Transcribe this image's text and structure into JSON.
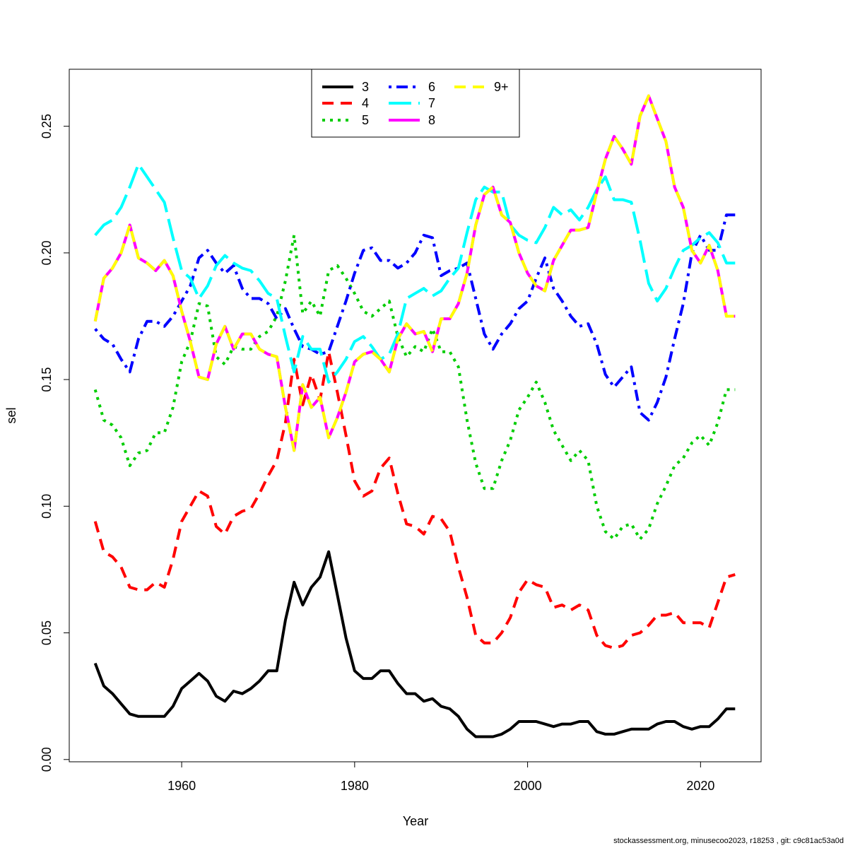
{
  "chart_data": {
    "type": "line",
    "title": "",
    "xlabel": "Year",
    "ylabel": "sel",
    "xlim": [
      1947,
      2027
    ],
    "ylim": [
      -0.0009,
      0.2725
    ],
    "xticks": [
      1960,
      1980,
      2000,
      2020
    ],
    "xtick_labels": [
      "1960",
      "1980",
      "2000",
      "2020"
    ],
    "yticks": [
      0.0,
      0.05,
      0.1,
      0.15,
      0.2,
      0.25
    ],
    "ytick_labels": [
      "0.00",
      "0.05",
      "0.10",
      "0.15",
      "0.20",
      "0.25"
    ],
    "legend_position": "top-center",
    "x": [
      1950,
      1951,
      1952,
      1953,
      1954,
      1955,
      1956,
      1957,
      1958,
      1959,
      1960,
      1961,
      1962,
      1963,
      1964,
      1965,
      1966,
      1967,
      1968,
      1969,
      1970,
      1971,
      1972,
      1973,
      1974,
      1975,
      1976,
      1977,
      1978,
      1979,
      1980,
      1981,
      1982,
      1983,
      1984,
      1985,
      1986,
      1987,
      1988,
      1989,
      1990,
      1991,
      1992,
      1993,
      1994,
      1995,
      1996,
      1997,
      1998,
      1999,
      2000,
      2001,
      2002,
      2003,
      2004,
      2005,
      2006,
      2007,
      2008,
      2009,
      2010,
      2011,
      2012,
      2013,
      2014,
      2015,
      2016,
      2017,
      2018,
      2019,
      2020,
      2021,
      2022,
      2023,
      2024
    ],
    "series": [
      {
        "name": "3",
        "color": "#000000",
        "dash": "solid",
        "values": [
          0.038,
          0.029,
          0.026,
          0.022,
          0.018,
          0.017,
          0.017,
          0.017,
          0.017,
          0.021,
          0.028,
          0.031,
          0.034,
          0.031,
          0.025,
          0.023,
          0.027,
          0.026,
          0.028,
          0.031,
          0.035,
          0.035,
          0.055,
          0.07,
          0.061,
          0.068,
          0.072,
          0.082,
          0.065,
          0.048,
          0.035,
          0.032,
          0.032,
          0.035,
          0.035,
          0.03,
          0.026,
          0.026,
          0.023,
          0.024,
          0.021,
          0.02,
          0.017,
          0.012,
          0.009,
          0.009,
          0.009,
          0.01,
          0.012,
          0.015,
          0.015,
          0.015,
          0.014,
          0.013,
          0.014,
          0.014,
          0.015,
          0.015,
          0.011,
          0.01,
          0.01,
          0.011,
          0.012,
          0.012,
          0.012,
          0.014,
          0.015,
          0.015,
          0.013,
          0.012,
          0.013,
          0.013,
          0.016,
          0.02,
          0.02
        ]
      },
      {
        "name": "4",
        "color": "#ff0000",
        "dash": "dashed",
        "values": [
          0.094,
          0.082,
          0.08,
          0.076,
          0.068,
          0.067,
          0.067,
          0.07,
          0.068,
          0.079,
          0.094,
          0.1,
          0.106,
          0.104,
          0.092,
          0.089,
          0.096,
          0.098,
          0.099,
          0.105,
          0.112,
          0.118,
          0.133,
          0.158,
          0.14,
          0.152,
          0.142,
          0.161,
          0.145,
          0.128,
          0.11,
          0.104,
          0.106,
          0.115,
          0.119,
          0.105,
          0.093,
          0.092,
          0.089,
          0.096,
          0.095,
          0.09,
          0.076,
          0.064,
          0.049,
          0.046,
          0.046,
          0.05,
          0.056,
          0.066,
          0.071,
          0.069,
          0.068,
          0.06,
          0.061,
          0.059,
          0.061,
          0.059,
          0.049,
          0.045,
          0.044,
          0.045,
          0.049,
          0.05,
          0.053,
          0.057,
          0.057,
          0.058,
          0.054,
          0.054,
          0.054,
          0.052,
          0.062,
          0.072,
          0.073
        ]
      },
      {
        "name": "5",
        "color": "#00cd00",
        "dash": "dotted",
        "values": [
          0.146,
          0.134,
          0.132,
          0.127,
          0.116,
          0.121,
          0.122,
          0.129,
          0.129,
          0.139,
          0.157,
          0.165,
          0.18,
          0.179,
          0.159,
          0.156,
          0.163,
          0.162,
          0.162,
          0.167,
          0.169,
          0.175,
          0.189,
          0.207,
          0.176,
          0.181,
          0.175,
          0.193,
          0.195,
          0.19,
          0.184,
          0.177,
          0.175,
          0.178,
          0.181,
          0.167,
          0.159,
          0.163,
          0.161,
          0.17,
          0.161,
          0.161,
          0.155,
          0.134,
          0.117,
          0.107,
          0.107,
          0.118,
          0.126,
          0.138,
          0.143,
          0.149,
          0.141,
          0.13,
          0.124,
          0.118,
          0.122,
          0.118,
          0.1,
          0.09,
          0.087,
          0.092,
          0.093,
          0.087,
          0.091,
          0.101,
          0.108,
          0.116,
          0.119,
          0.125,
          0.128,
          0.124,
          0.133,
          0.146,
          0.146
        ]
      },
      {
        "name": "6",
        "color": "#0000ff",
        "dash": "dotdash",
        "values": [
          0.17,
          0.166,
          0.164,
          0.158,
          0.153,
          0.166,
          0.173,
          0.173,
          0.171,
          0.175,
          0.181,
          0.187,
          0.198,
          0.201,
          0.196,
          0.192,
          0.195,
          0.186,
          0.182,
          0.182,
          0.18,
          0.174,
          0.178,
          0.17,
          0.163,
          0.162,
          0.16,
          0.161,
          0.171,
          0.181,
          0.192,
          0.201,
          0.202,
          0.197,
          0.197,
          0.194,
          0.196,
          0.2,
          0.207,
          0.206,
          0.191,
          0.193,
          0.194,
          0.196,
          0.182,
          0.168,
          0.162,
          0.168,
          0.172,
          0.178,
          0.181,
          0.19,
          0.198,
          0.186,
          0.181,
          0.175,
          0.171,
          0.172,
          0.164,
          0.152,
          0.147,
          0.151,
          0.155,
          0.137,
          0.134,
          0.141,
          0.151,
          0.166,
          0.18,
          0.2,
          0.207,
          0.201,
          0.201,
          0.215,
          0.215
        ]
      },
      {
        "name": "7",
        "color": "#00ffff",
        "dash": "longdash",
        "values": [
          0.207,
          0.211,
          0.213,
          0.218,
          0.226,
          0.235,
          0.23,
          0.225,
          0.22,
          0.206,
          0.193,
          0.19,
          0.182,
          0.187,
          0.195,
          0.199,
          0.196,
          0.194,
          0.193,
          0.189,
          0.184,
          0.182,
          0.167,
          0.153,
          0.167,
          0.162,
          0.162,
          0.149,
          0.153,
          0.158,
          0.165,
          0.167,
          0.163,
          0.158,
          0.16,
          0.168,
          0.182,
          0.184,
          0.186,
          0.183,
          0.185,
          0.19,
          0.194,
          0.208,
          0.221,
          0.226,
          0.224,
          0.224,
          0.211,
          0.207,
          0.205,
          0.204,
          0.21,
          0.218,
          0.215,
          0.217,
          0.213,
          0.218,
          0.225,
          0.23,
          0.221,
          0.221,
          0.22,
          0.205,
          0.188,
          0.181,
          0.186,
          0.194,
          0.201,
          0.203,
          0.206,
          0.208,
          0.204,
          0.196,
          0.196
        ]
      },
      {
        "name": "8",
        "color": "#ff00ff",
        "dash": "solid",
        "values": [
          0.173,
          0.19,
          0.194,
          0.2,
          0.211,
          0.198,
          0.196,
          0.193,
          0.197,
          0.191,
          0.177,
          0.165,
          0.151,
          0.15,
          0.164,
          0.171,
          0.162,
          0.168,
          0.168,
          0.162,
          0.16,
          0.159,
          0.139,
          0.122,
          0.148,
          0.139,
          0.143,
          0.127,
          0.135,
          0.145,
          0.157,
          0.16,
          0.161,
          0.158,
          0.153,
          0.166,
          0.172,
          0.168,
          0.169,
          0.161,
          0.174,
          0.174,
          0.18,
          0.192,
          0.211,
          0.223,
          0.226,
          0.215,
          0.212,
          0.2,
          0.192,
          0.187,
          0.185,
          0.197,
          0.203,
          0.209,
          0.209,
          0.21,
          0.224,
          0.237,
          0.246,
          0.241,
          0.235,
          0.254,
          0.262,
          0.253,
          0.244,
          0.226,
          0.218,
          0.201,
          0.196,
          0.203,
          0.193,
          0.175,
          0.175
        ]
      },
      {
        "name": "9+",
        "color": "#ffff00",
        "dash": "dashed",
        "values": [
          0.173,
          0.19,
          0.194,
          0.2,
          0.211,
          0.198,
          0.196,
          0.193,
          0.197,
          0.191,
          0.177,
          0.165,
          0.151,
          0.15,
          0.164,
          0.171,
          0.162,
          0.168,
          0.168,
          0.162,
          0.16,
          0.159,
          0.139,
          0.122,
          0.148,
          0.139,
          0.143,
          0.127,
          0.135,
          0.145,
          0.157,
          0.16,
          0.161,
          0.158,
          0.153,
          0.166,
          0.172,
          0.168,
          0.169,
          0.161,
          0.174,
          0.174,
          0.18,
          0.192,
          0.211,
          0.223,
          0.226,
          0.215,
          0.212,
          0.2,
          0.192,
          0.187,
          0.185,
          0.197,
          0.203,
          0.209,
          0.209,
          0.21,
          0.224,
          0.237,
          0.246,
          0.241,
          0.235,
          0.254,
          0.262,
          0.253,
          0.244,
          0.226,
          0.218,
          0.201,
          0.196,
          0.203,
          0.193,
          0.175,
          0.175
        ]
      }
    ]
  },
  "footer": {
    "text": "stockassessment.org, minusecoo2023, r18253 , git: c9c81ac53a0d"
  }
}
